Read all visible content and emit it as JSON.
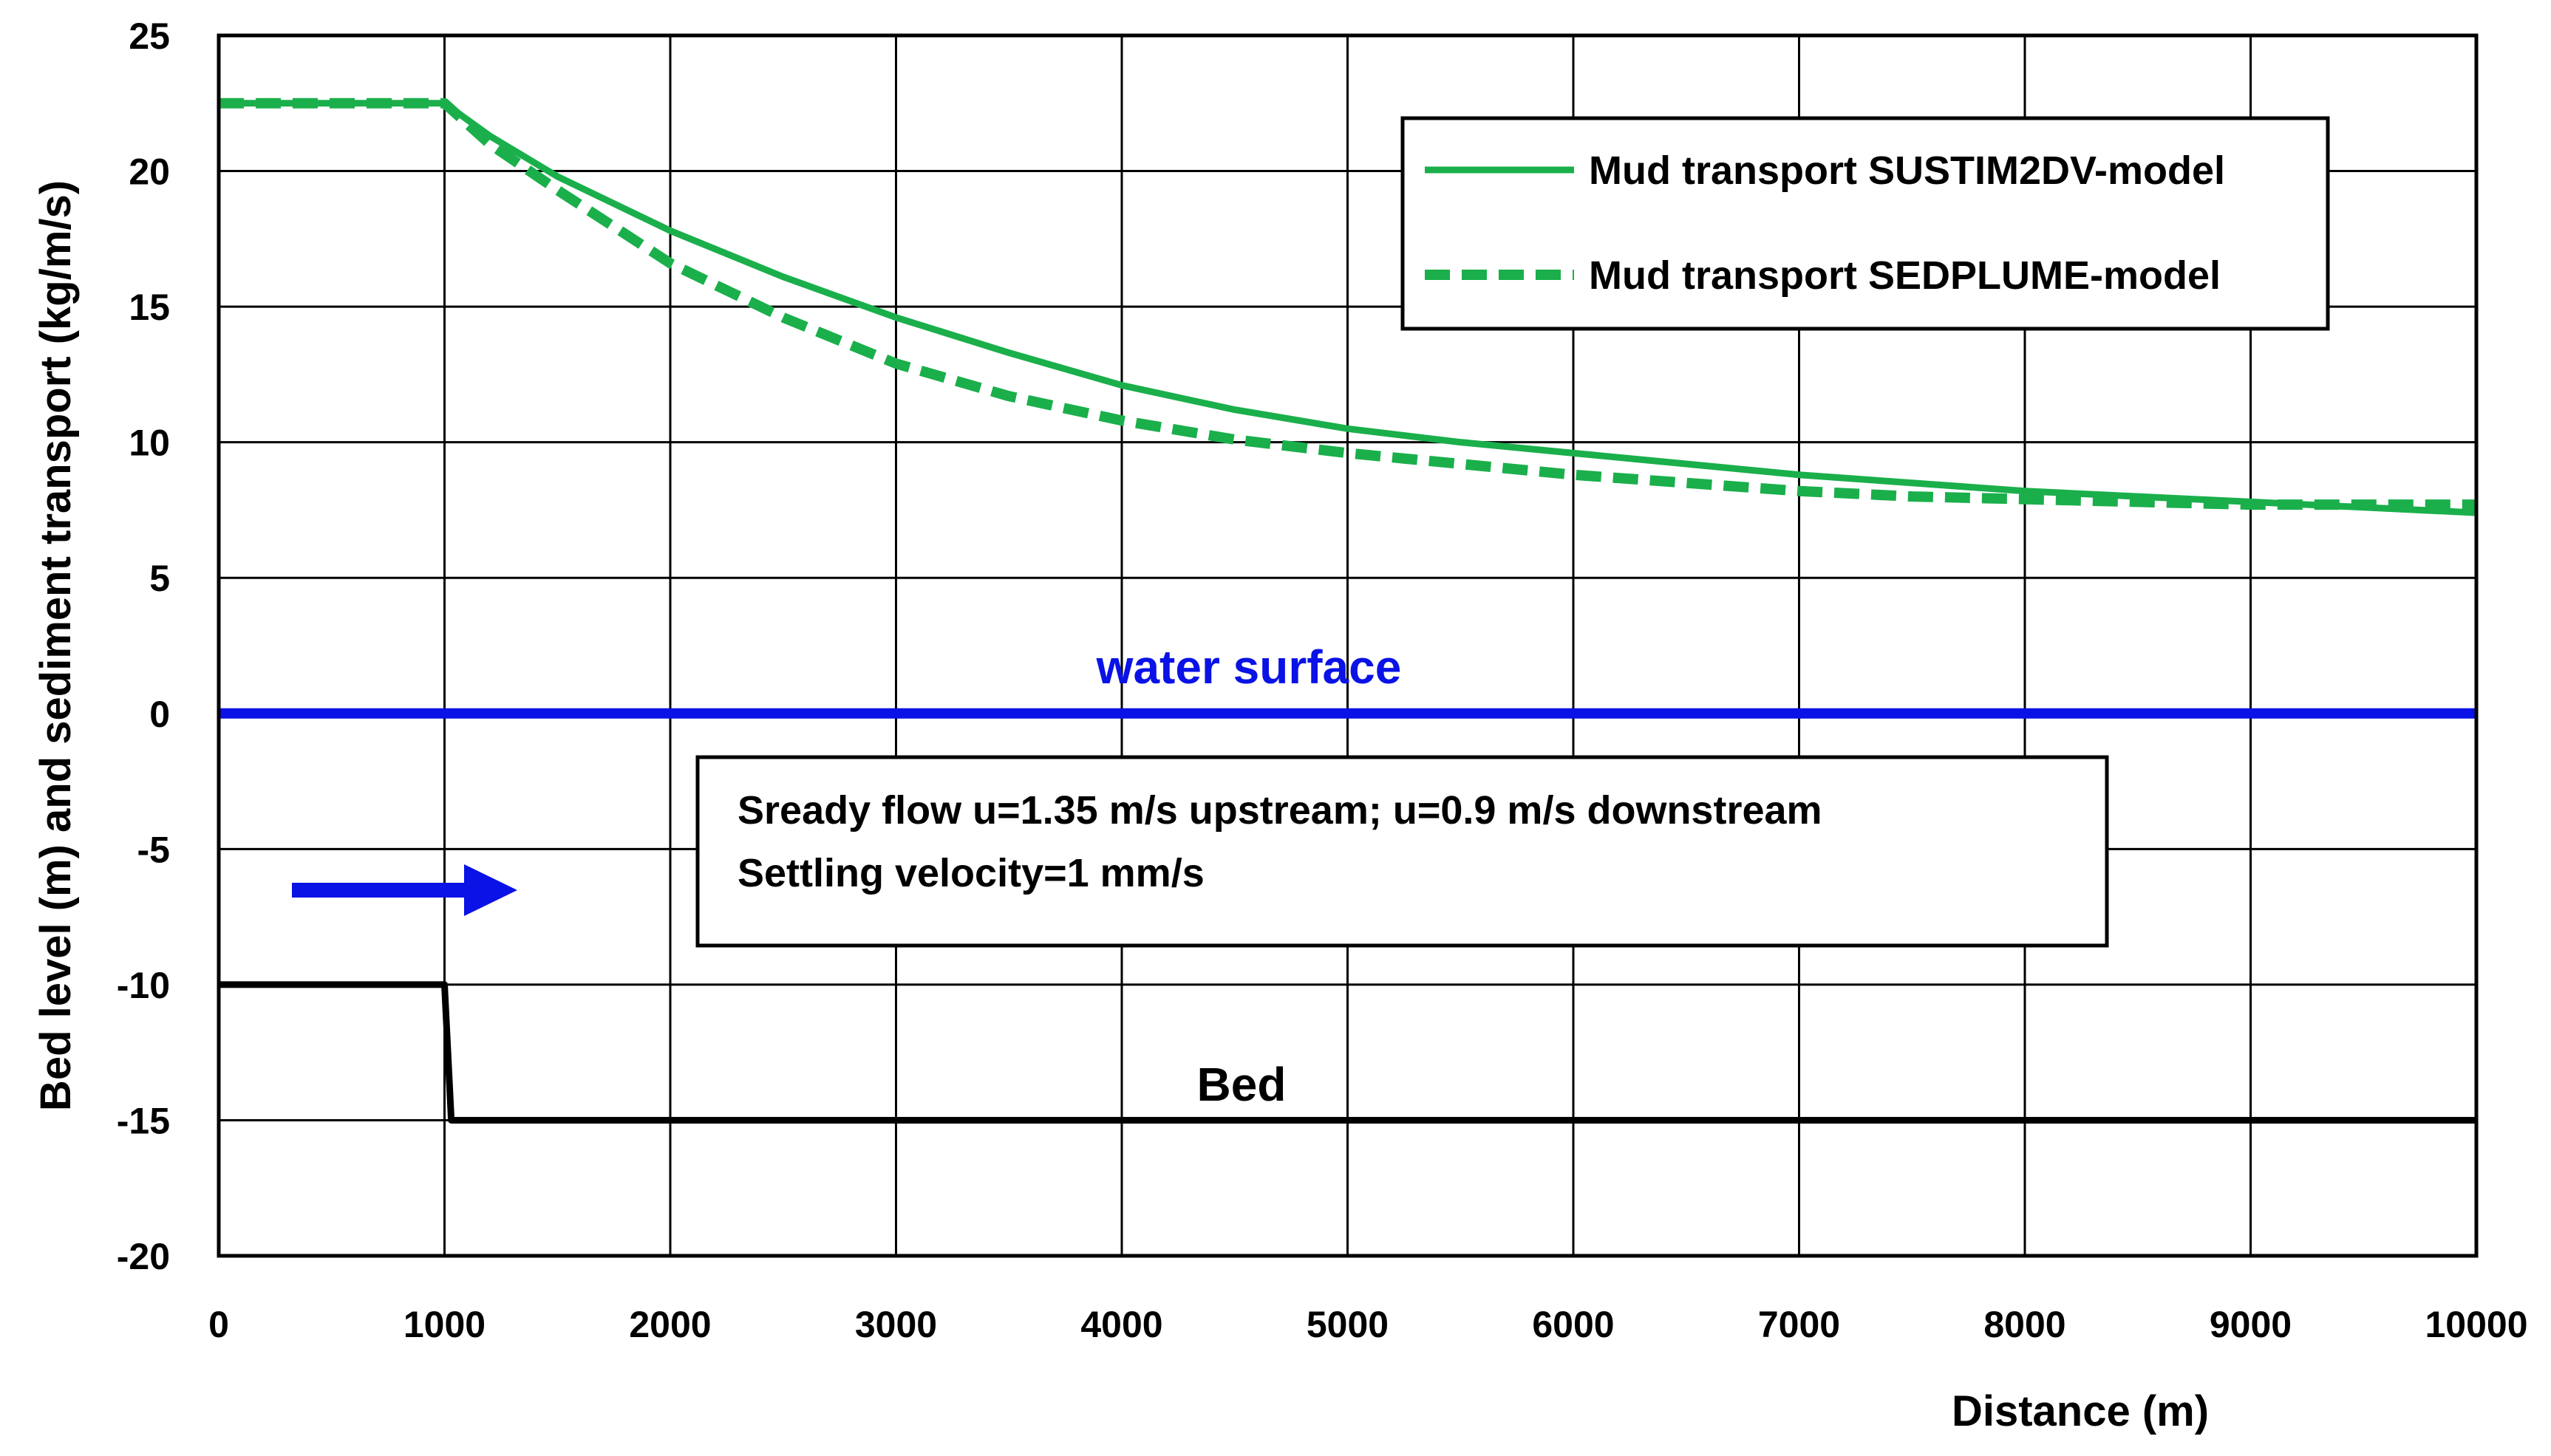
{
  "chart_data": {
    "type": "line",
    "title": "",
    "xlabel": "Distance (m)",
    "ylabel": "Bed level (m) and sediment transport  (kg/m/s)",
    "xlim": [
      0,
      10000
    ],
    "ylim": [
      -20,
      25
    ],
    "x_ticks": [
      0,
      1000,
      2000,
      3000,
      4000,
      5000,
      6000,
      7000,
      8000,
      9000,
      10000
    ],
    "y_ticks": [
      25,
      20,
      15,
      10,
      5,
      0,
      -5,
      -10,
      -15,
      -20
    ],
    "x_tick_labels": [
      "0",
      "1000",
      "2000",
      "3000",
      "4000",
      "5000",
      "6000",
      "7000",
      "8000",
      "9000",
      "10000"
    ],
    "y_tick_labels": [
      "25",
      "20",
      "15",
      "10",
      "5",
      "0",
      "-5",
      "-10",
      "-15",
      "-20"
    ],
    "grid": true,
    "legend_position": "top-right",
    "series": [
      {
        "name": "Mud transport SUSTIM2DV-model",
        "style": "solid",
        "color": "#1aaf4b",
        "x": [
          0,
          1000,
          1200,
          1500,
          2000,
          2500,
          3000,
          3500,
          4000,
          4500,
          5000,
          5500,
          6000,
          6500,
          7000,
          7500,
          8000,
          8500,
          9000,
          9500,
          10000
        ],
        "y": [
          22.5,
          22.5,
          21.3,
          19.8,
          17.8,
          16.1,
          14.6,
          13.3,
          12.1,
          11.2,
          10.5,
          10.0,
          9.6,
          9.2,
          8.8,
          8.5,
          8.2,
          8.0,
          7.8,
          7.6,
          7.4
        ]
      },
      {
        "name": "Mud transport SEDPLUME-model",
        "style": "dashed",
        "color": "#1aaf4b",
        "x": [
          0,
          1000,
          1200,
          1500,
          2000,
          2500,
          3000,
          3500,
          4000,
          4500,
          5000,
          5500,
          6000,
          6500,
          7000,
          7500,
          8000,
          8500,
          9000,
          9500,
          10000
        ],
        "y": [
          22.5,
          22.5,
          21.0,
          19.3,
          16.6,
          14.6,
          12.9,
          11.7,
          10.8,
          10.1,
          9.6,
          9.2,
          8.8,
          8.5,
          8.2,
          8.0,
          7.9,
          7.8,
          7.7,
          7.7,
          7.7
        ]
      },
      {
        "name": "water surface",
        "style": "solid",
        "color": "#0a12e6",
        "x": [
          0,
          10000
        ],
        "y": [
          0,
          0
        ]
      },
      {
        "name": "Bed",
        "style": "solid",
        "color": "#000000",
        "x": [
          0,
          1000,
          1030,
          10000
        ],
        "y": [
          -10,
          -10,
          -15,
          -15
        ]
      }
    ],
    "legend": [
      "Mud transport SUSTIM2DV-model",
      "Mud transport SEDPLUME-model"
    ],
    "annotations": {
      "water_surface": "water surface",
      "bed": "Bed",
      "note_line1": "Sready flow u=1.35 m/s upstream; u=0.9 m/s downstream",
      "note_line2": "Settling velocity=1 mm/s",
      "flow_arrow": "right-arrow-icon"
    }
  }
}
